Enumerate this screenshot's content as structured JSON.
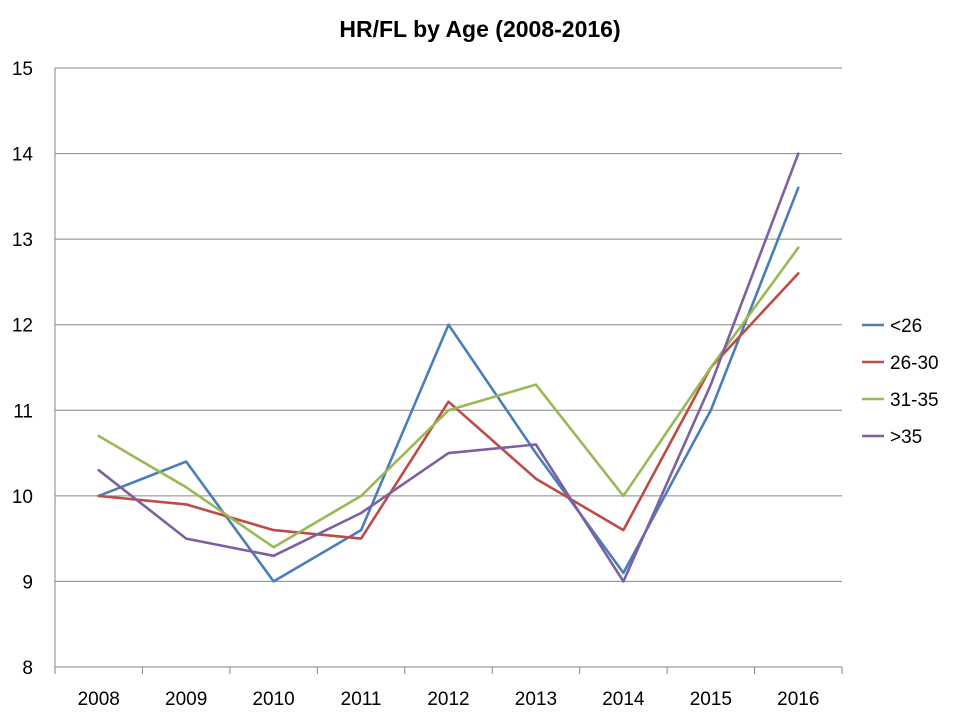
{
  "chart_data": {
    "type": "line",
    "title": "HR/FL by Age (2008-2016)",
    "xlabel": "",
    "ylabel": "",
    "categories": [
      "2008",
      "2009",
      "2010",
      "2011",
      "2012",
      "2013",
      "2014",
      "2015",
      "2016"
    ],
    "ylim": [
      8,
      15
    ],
    "yticks": [
      8,
      9,
      10,
      11,
      12,
      13,
      14,
      15
    ],
    "grid": true,
    "legend_position": "right",
    "series": [
      {
        "name": "<26",
        "color": "#4a7ebb",
        "values": [
          10.0,
          10.4,
          9.0,
          9.6,
          12.0,
          10.5,
          9.1,
          11.0,
          13.6
        ]
      },
      {
        "name": "26-30",
        "color": "#be4b48",
        "values": [
          10.0,
          9.9,
          9.6,
          9.5,
          11.1,
          10.2,
          9.6,
          11.5,
          12.6
        ]
      },
      {
        "name": "31-35",
        "color": "#98b954",
        "values": [
          10.7,
          10.1,
          9.4,
          10.0,
          11.0,
          11.3,
          10.0,
          11.5,
          12.9
        ]
      },
      {
        "name": ">35",
        "color": "#7d60a0",
        "values": [
          10.3,
          9.5,
          9.3,
          9.8,
          10.5,
          10.6,
          9.0,
          11.3,
          14.0
        ]
      }
    ]
  }
}
